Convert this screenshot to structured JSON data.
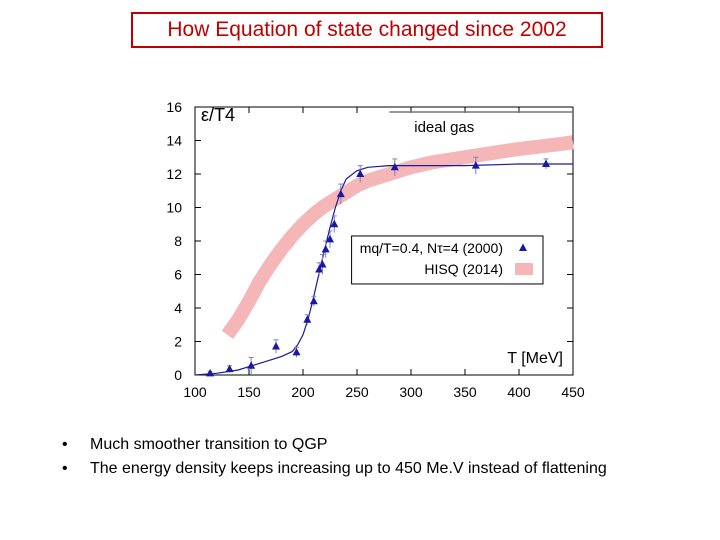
{
  "slide": {
    "title": "How Equation of state changed since 2002",
    "bullets": [
      "Much smoother transition to QGP",
      "The energy density keeps increasing up to 450 Me.V instead of flattening"
    ]
  },
  "chart_data": {
    "type": "line",
    "ylabel": "ε/T4",
    "xlabel": "T [MeV]",
    "xlim": [
      100,
      450
    ],
    "ylim": [
      0,
      16
    ],
    "xticks": [
      100,
      150,
      200,
      250,
      300,
      350,
      400,
      450
    ],
    "yticks": [
      0,
      2,
      4,
      6,
      8,
      10,
      12,
      14,
      16
    ],
    "ideal_gas": {
      "label": "ideal gas",
      "value": 15.7
    },
    "series": [
      {
        "name": "mq/T=0.4, Nτ=4 (2000)",
        "color": "#1a1aa0",
        "markers": [
          {
            "x": 114,
            "y": 0.1,
            "err": 0.1
          },
          {
            "x": 132,
            "y": 0.35,
            "err": 0.2
          },
          {
            "x": 152,
            "y": 0.55,
            "err": 0.5
          },
          {
            "x": 175,
            "y": 1.7,
            "err": 0.4
          },
          {
            "x": 194,
            "y": 1.35,
            "err": 0.3
          },
          {
            "x": 204,
            "y": 3.3,
            "err": 0.3
          },
          {
            "x": 210,
            "y": 4.4,
            "err": 0.3
          },
          {
            "x": 215,
            "y": 6.3,
            "err": 0.4
          },
          {
            "x": 218,
            "y": 6.6,
            "err": 0.6
          },
          {
            "x": 221,
            "y": 7.5,
            "err": 0.5
          },
          {
            "x": 225,
            "y": 8.1,
            "err": 0.5
          },
          {
            "x": 229,
            "y": 9.0,
            "err": 0.5
          },
          {
            "x": 235,
            "y": 10.8,
            "err": 0.6
          },
          {
            "x": 253,
            "y": 12.0,
            "err": 0.5
          },
          {
            "x": 285,
            "y": 12.4,
            "err": 0.5
          },
          {
            "x": 360,
            "y": 12.5,
            "err": 0.5
          },
          {
            "x": 425,
            "y": 12.6,
            "err": 0.3
          }
        ],
        "fit_x": [
          100,
          120,
          140,
          160,
          180,
          190,
          195,
          200,
          205,
          210,
          215,
          220,
          225,
          230,
          235,
          240,
          250,
          260,
          280,
          300,
          350,
          400,
          450
        ],
        "fit_y": [
          0.0,
          0.1,
          0.3,
          0.7,
          1.1,
          1.4,
          1.8,
          2.4,
          3.4,
          4.7,
          6.1,
          7.5,
          8.8,
          10.0,
          11.0,
          11.7,
          12.2,
          12.4,
          12.5,
          12.5,
          12.5,
          12.6,
          12.6
        ]
      },
      {
        "name": "HISQ (2014)",
        "color": "#f4b6b6",
        "x": [
          130,
          140,
          150,
          160,
          170,
          180,
          190,
          200,
          210,
          220,
          230,
          240,
          250,
          260,
          280,
          300,
          320,
          340,
          360,
          380,
          400,
          420,
          440,
          450
        ],
        "y": [
          2.4,
          3.3,
          4.4,
          5.6,
          6.6,
          7.5,
          8.3,
          9.0,
          9.6,
          10.1,
          10.5,
          10.9,
          11.3,
          11.6,
          12.0,
          12.4,
          12.7,
          12.9,
          13.1,
          13.3,
          13.5,
          13.65,
          13.8,
          13.9
        ]
      }
    ]
  }
}
